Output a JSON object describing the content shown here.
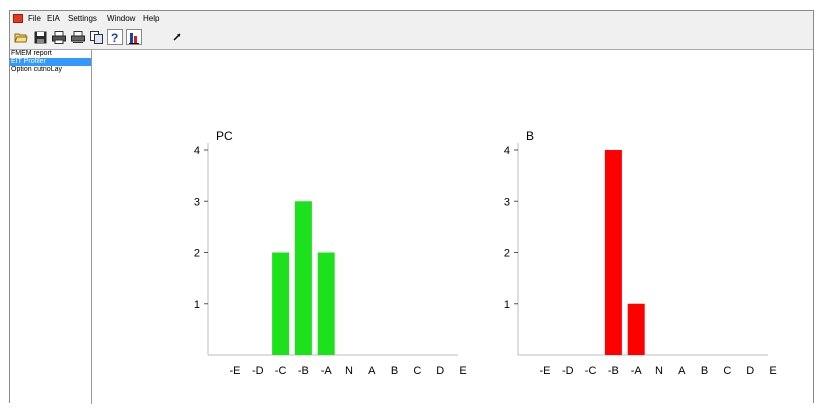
{
  "menu": {
    "items": [
      "File",
      "EIA",
      "Settings",
      "Window",
      "Help"
    ]
  },
  "toolbar": {
    "buttons": [
      "open-folder-icon",
      "save-icon",
      "print-icon",
      "print-preview-icon",
      "copy-icon",
      "help-icon",
      "chart-icon",
      "pointer-icon"
    ]
  },
  "sidebar": {
    "items": [
      {
        "label": "FMEM report",
        "selected": false
      },
      {
        "label": "EIT Profiler",
        "selected": true
      },
      {
        "label": "Option cutnoLay",
        "selected": false
      }
    ]
  },
  "colors": {
    "left_bar": "#1ee11e",
    "right_bar": "#ff0000",
    "selection": "#3399ff"
  },
  "chart_data": [
    {
      "type": "bar",
      "title": "PC",
      "categories": [
        "-E",
        "-D",
        "-C",
        "-B",
        "-A",
        "N",
        "A",
        "B",
        "C",
        "D",
        "E"
      ],
      "values": [
        0,
        0,
        2,
        3,
        2,
        0,
        0,
        0,
        0,
        0,
        0
      ],
      "ylim": [
        0,
        4
      ],
      "yticks": [
        "1",
        "2",
        "3",
        "4"
      ],
      "color": "#1ee11e"
    },
    {
      "type": "bar",
      "title": "B",
      "categories": [
        "-E",
        "-D",
        "-C",
        "-B",
        "-A",
        "N",
        "A",
        "B",
        "C",
        "D",
        "E"
      ],
      "values": [
        0,
        0,
        0,
        4,
        1,
        0,
        0,
        0,
        0,
        0,
        0
      ],
      "ylim": [
        0,
        4
      ],
      "yticks": [
        "1",
        "2",
        "3",
        "4"
      ],
      "color": "#ff0000"
    }
  ]
}
